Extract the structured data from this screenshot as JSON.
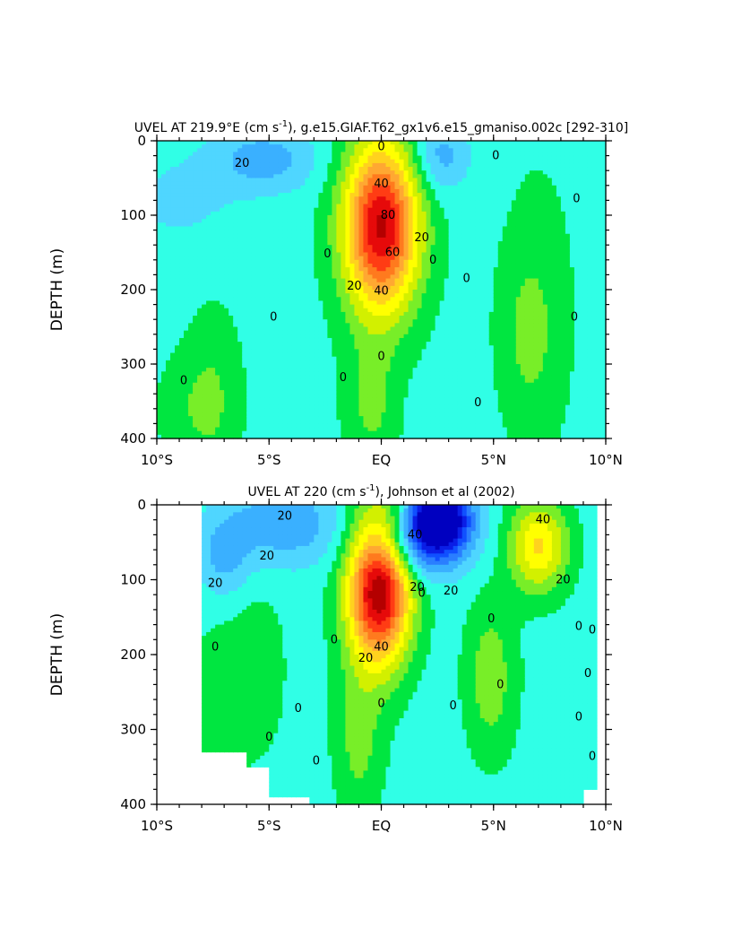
{
  "chart_data": [
    {
      "type": "heatmap",
      "title": "UVEL AT 219.9°E (cm s",
      "title_superscript": "-1",
      "title_rest": "), g.e15.GIAF.T62_gx1v6.e15_gmaniso.002c [292-310]",
      "ylabel": "DEPTH (m)",
      "xlabel": "",
      "xlim": [
        -10,
        10
      ],
      "ylim": [
        400,
        0
      ],
      "x_ticks": [
        {
          "value": -10,
          "label": "10°S"
        },
        {
          "value": -5,
          "label": "5°S"
        },
        {
          "value": 0,
          "label": "EQ"
        },
        {
          "value": 5,
          "label": "5°N"
        },
        {
          "value": 10,
          "label": "10°N"
        }
      ],
      "y_ticks": [
        0,
        100,
        200,
        300,
        400
      ],
      "contour_interval": 10,
      "contour_labels": [
        {
          "text": "0",
          "x": 0.0,
          "y": 8
        },
        {
          "text": "20",
          "x": -6.2,
          "y": 30
        },
        {
          "text": "40",
          "x": 0.0,
          "y": 58
        },
        {
          "text": "80",
          "x": 0.3,
          "y": 100
        },
        {
          "text": "60",
          "x": 0.5,
          "y": 150
        },
        {
          "text": "20",
          "x": 1.8,
          "y": 130
        },
        {
          "text": "0",
          "x": -2.4,
          "y": 152
        },
        {
          "text": "0",
          "x": 2.3,
          "y": 160
        },
        {
          "text": "20",
          "x": -1.2,
          "y": 195
        },
        {
          "text": "40",
          "x": 0.0,
          "y": 202
        },
        {
          "text": "0",
          "x": 3.8,
          "y": 185
        },
        {
          "text": "0",
          "x": 5.1,
          "y": 20
        },
        {
          "text": "0",
          "x": 8.7,
          "y": 78
        },
        {
          "text": "0",
          "x": 8.6,
          "y": 237
        },
        {
          "text": "0",
          "x": -4.8,
          "y": 237
        },
        {
          "text": "0",
          "x": -8.8,
          "y": 322
        },
        {
          "text": "0",
          "x": -1.7,
          "y": 318
        },
        {
          "text": "0",
          "x": 0.0,
          "y": 290
        },
        {
          "text": "0",
          "x": 4.3,
          "y": 352
        }
      ],
      "features": [
        {
          "kind": "core",
          "x": 0.0,
          "depth": 115,
          "peak_cm_s": 95,
          "half_width_deg": 1.9,
          "half_depth_m": 130
        },
        {
          "kind": "westward",
          "x": -4.5,
          "depth": 25,
          "min_cm_s": -25
        },
        {
          "kind": "westward",
          "x": 2.5,
          "depth": 20,
          "min_cm_s": -25
        },
        {
          "kind": "eastward_weak",
          "x": -7.5,
          "depth": 340,
          "max_cm_s": 5
        },
        {
          "kind": "eastward_weak",
          "x": 6.5,
          "depth": 260,
          "max_cm_s": 5
        },
        {
          "kind": "eastward_weak",
          "x": -0.5,
          "depth": 360,
          "max_cm_s": 5
        }
      ]
    },
    {
      "type": "heatmap",
      "title": "UVEL AT 220 (cm s",
      "title_superscript": "-1",
      "title_rest": "), Johnson et al (2002)",
      "ylabel": "DEPTH (m)",
      "xlabel": "",
      "xlim": [
        -10,
        10
      ],
      "ylim": [
        400,
        0
      ],
      "data_xlim": [
        -8,
        9.6
      ],
      "x_ticks": [
        {
          "value": -10,
          "label": "10°S"
        },
        {
          "value": -5,
          "label": "5°S"
        },
        {
          "value": 0,
          "label": "EQ"
        },
        {
          "value": 5,
          "label": "5°N"
        },
        {
          "value": 10,
          "label": "10°N"
        }
      ],
      "y_ticks": [
        0,
        100,
        200,
        300,
        400
      ],
      "contour_interval": 10,
      "contour_labels": [
        {
          "text": "20",
          "x": -4.3,
          "y": 15
        },
        {
          "text": "20",
          "x": -5.1,
          "y": 68
        },
        {
          "text": "40",
          "x": 1.5,
          "y": 40
        },
        {
          "text": "40",
          "x": 7.2,
          "y": 20
        },
        {
          "text": "20",
          "x": 3.1,
          "y": 115
        },
        {
          "text": "20",
          "x": 8.1,
          "y": 100
        },
        {
          "text": "20",
          "x": 1.6,
          "y": 110
        },
        {
          "text": "0",
          "x": 1.8,
          "y": 118
        },
        {
          "text": "20",
          "x": -7.4,
          "y": 105
        },
        {
          "text": "0",
          "x": -7.4,
          "y": 190
        },
        {
          "text": "0",
          "x": -2.1,
          "y": 180
        },
        {
          "text": "20",
          "x": -0.7,
          "y": 205
        },
        {
          "text": "40",
          "x": 0.0,
          "y": 190
        },
        {
          "text": "0",
          "x": 4.9,
          "y": 152
        },
        {
          "text": "0",
          "x": 8.8,
          "y": 162
        },
        {
          "text": "0",
          "x": 9.4,
          "y": 167
        },
        {
          "text": "0",
          "x": 9.2,
          "y": 225
        },
        {
          "text": "0",
          "x": 5.3,
          "y": 240
        },
        {
          "text": "0",
          "x": 0.0,
          "y": 265
        },
        {
          "text": "0",
          "x": -3.7,
          "y": 272
        },
        {
          "text": "0",
          "x": 3.2,
          "y": 268
        },
        {
          "text": "0",
          "x": 8.8,
          "y": 283
        },
        {
          "text": "0",
          "x": -5.0,
          "y": 310
        },
        {
          "text": "0",
          "x": -2.9,
          "y": 342
        },
        {
          "text": "0",
          "x": 9.4,
          "y": 336
        }
      ],
      "features": [
        {
          "kind": "core",
          "x": -0.1,
          "depth": 110,
          "peak_cm_s": 105,
          "half_width_deg": 1.6,
          "half_depth_m": 115
        },
        {
          "kind": "eastward_necc",
          "x": 7.0,
          "depth": 55,
          "peak_cm_s": 45
        },
        {
          "kind": "westward_sec",
          "x": 2.8,
          "depth": 15,
          "min_cm_s": -70
        },
        {
          "kind": "westward",
          "x": -4.3,
          "depth": 20,
          "min_cm_s": -25
        },
        {
          "kind": "eastward_weak",
          "x": -5.5,
          "depth": 220,
          "max_cm_s": 5
        },
        {
          "kind": "eastward_weak",
          "x": 4.9,
          "depth": 230,
          "max_cm_s": 10
        },
        {
          "kind": "eastward_weak",
          "x": -1.0,
          "depth": 300,
          "max_cm_s": 5
        },
        {
          "kind": "eastward_weak",
          "x": -7.3,
          "depth": 270,
          "max_cm_s": 5
        }
      ]
    }
  ]
}
